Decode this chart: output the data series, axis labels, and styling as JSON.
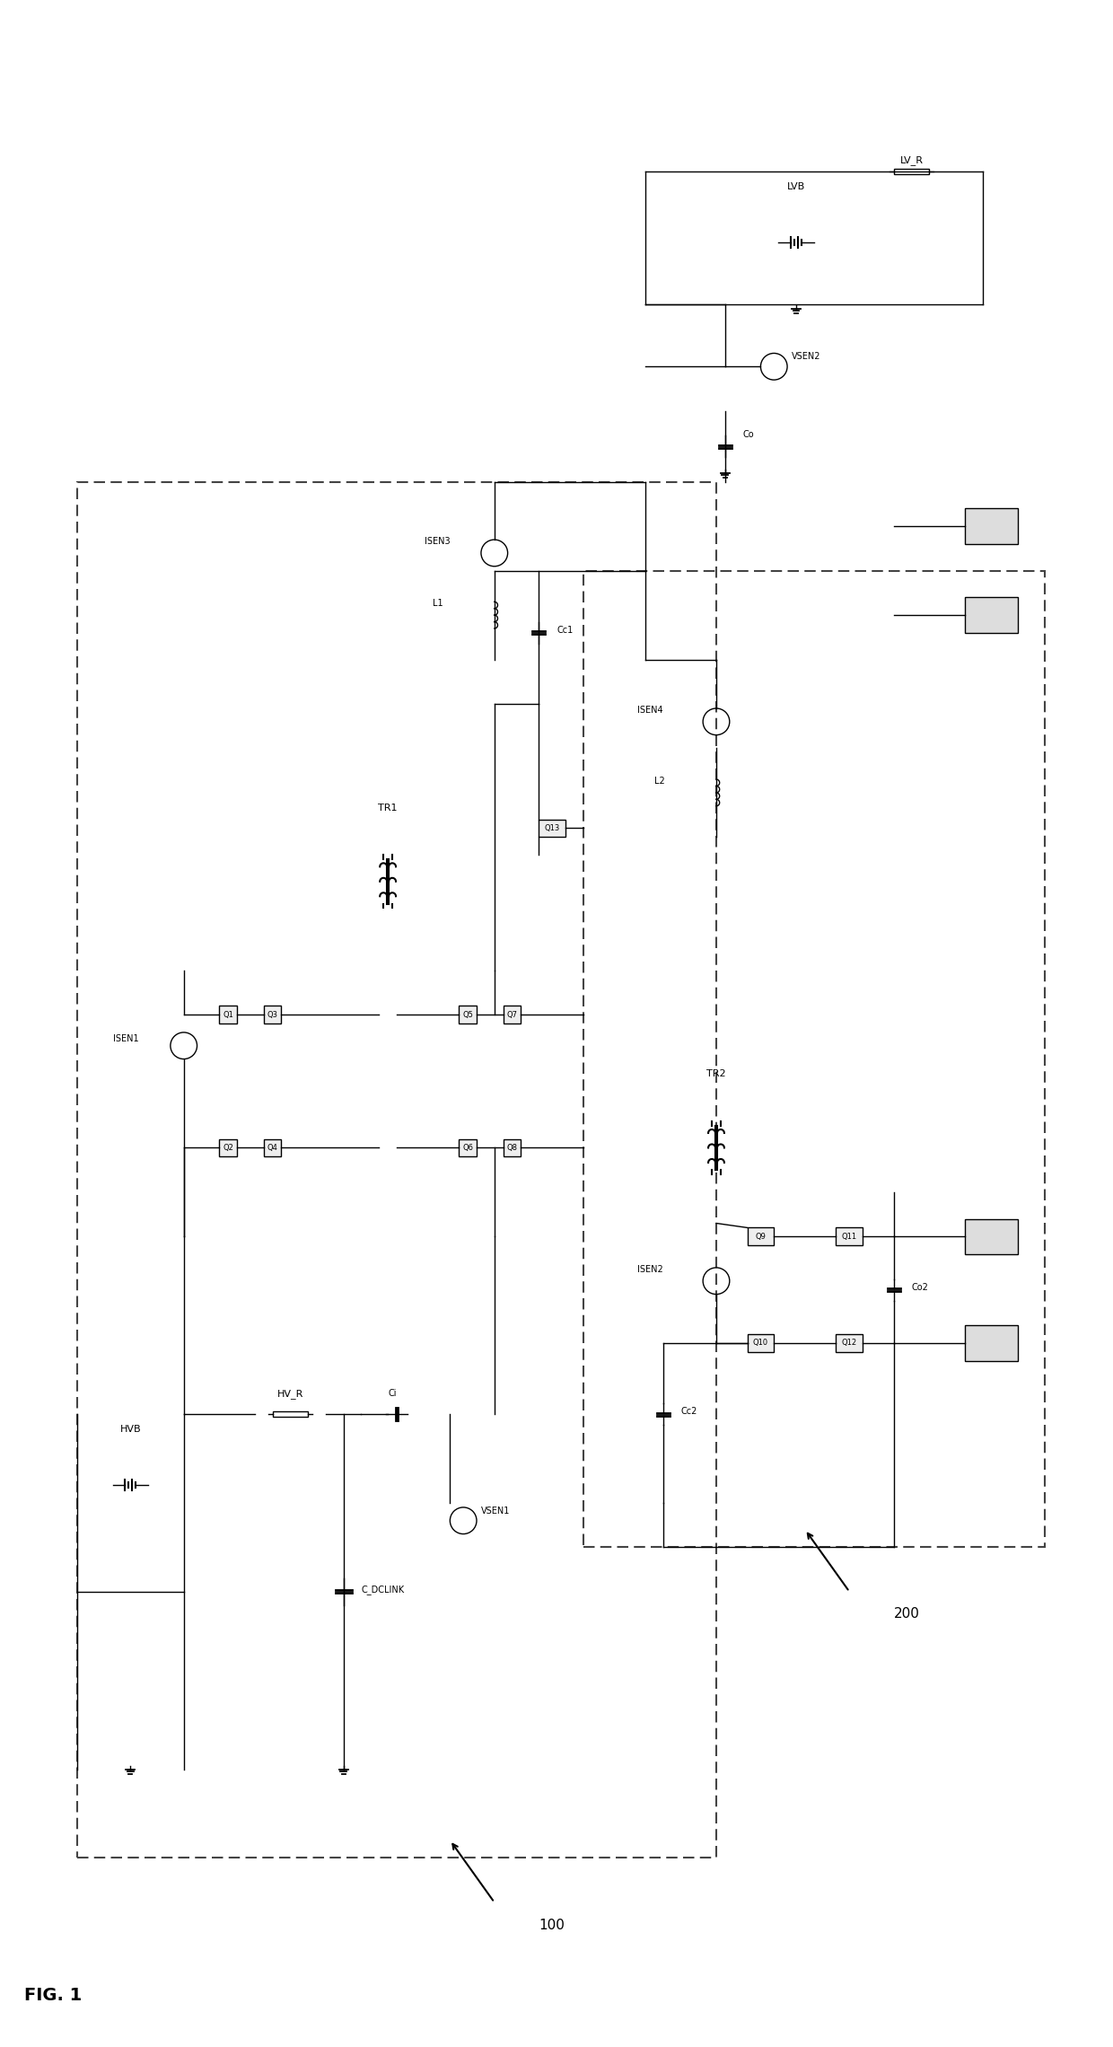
{
  "title": "FIG. 1",
  "bg_color": "#ffffff",
  "line_color": "#000000",
  "dashed_color": "#555555",
  "fig_width": 12.4,
  "fig_height": 22.8,
  "labels": {
    "fig_title": "FIG. 1",
    "module100": "100",
    "module200": "200",
    "hvb": "HVB",
    "lvb": "LVB",
    "hv_r": "HV_R",
    "lv_r": "LV_R",
    "c_dclink": "C_DCLINK",
    "co": "Co",
    "co2": "Co2",
    "cc1": "Cc1",
    "cc2": "Cc2",
    "tr1": "TR1",
    "tr2": "TR2",
    "l1": "L1",
    "l2": "L2",
    "isen1": "ISEN1",
    "isen2": "ISEN2",
    "isen3": "ISEN3",
    "isen4": "ISEN4",
    "vsen1": "VSEN1",
    "vsen2": "VSEN2",
    "q1": "Q1",
    "q2": "Q2",
    "q3": "Q3",
    "q4": "Q4",
    "q5": "Q5",
    "q6": "Q6",
    "q7": "Q7",
    "q8": "Q8",
    "q9": "Q9",
    "q10": "Q10",
    "q11": "Q11",
    "q12": "Q12",
    "q13": "Q13",
    "ci": "Ci"
  }
}
